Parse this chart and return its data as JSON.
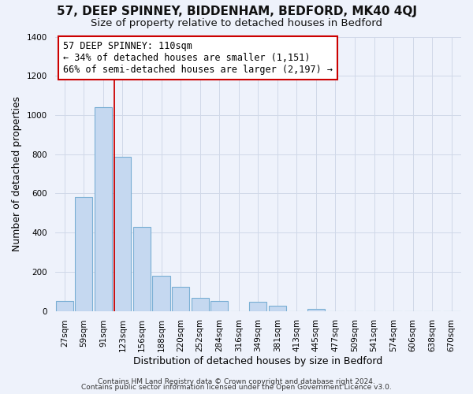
{
  "title": "57, DEEP SPINNEY, BIDDENHAM, BEDFORD, MK40 4QJ",
  "subtitle": "Size of property relative to detached houses in Bedford",
  "xlabel": "Distribution of detached houses by size in Bedford",
  "ylabel": "Number of detached properties",
  "bar_labels": [
    "27sqm",
    "59sqm",
    "91sqm",
    "123sqm",
    "156sqm",
    "188sqm",
    "220sqm",
    "252sqm",
    "284sqm",
    "316sqm",
    "349sqm",
    "381sqm",
    "413sqm",
    "445sqm",
    "477sqm",
    "509sqm",
    "541sqm",
    "574sqm",
    "606sqm",
    "638sqm",
    "670sqm"
  ],
  "bar_values": [
    50,
    580,
    1040,
    785,
    430,
    178,
    125,
    65,
    50,
    0,
    48,
    25,
    0,
    12,
    0,
    0,
    0,
    0,
    0,
    0,
    0
  ],
  "bar_color": "#c5d8f0",
  "bar_edge_color": "#7aafd4",
  "background_color": "#eef2fb",
  "grid_color": "#d0d8e8",
  "vline_color": "#cc0000",
  "annotation_text": "57 DEEP SPINNEY: 110sqm\n← 34% of detached houses are smaller (1,151)\n66% of semi-detached houses are larger (2,197) →",
  "annotation_box_facecolor": "#ffffff",
  "annotation_box_edge": "#cc0000",
  "ylim": [
    0,
    1400
  ],
  "yticks": [
    0,
    200,
    400,
    600,
    800,
    1000,
    1200,
    1400
  ],
  "footer1": "Contains HM Land Registry data © Crown copyright and database right 2024.",
  "footer2": "Contains public sector information licensed under the Open Government Licence v3.0.",
  "title_fontsize": 11,
  "subtitle_fontsize": 9.5,
  "axis_label_fontsize": 9,
  "tick_fontsize": 7.5,
  "annotation_fontsize": 8.5,
  "footer_fontsize": 6.5,
  "vline_x_index": 2.59
}
